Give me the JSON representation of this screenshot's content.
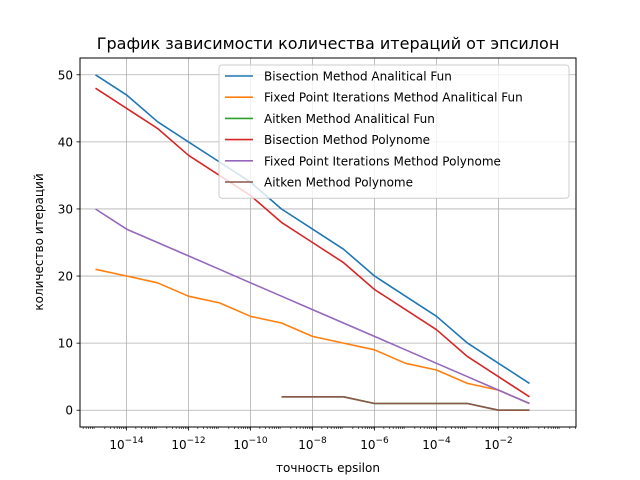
{
  "chart_data": {
    "type": "line",
    "title": "График зависимости количества итераций от эпсилон",
    "xlabel": "точность epsilon",
    "ylabel": "количество итераций",
    "xscale": "log",
    "xlim": [
      3.16e-16,
      3.16
    ],
    "ylim": [
      -2.5,
      52.5
    ],
    "grid": true,
    "legend_position": "top-right",
    "x_ticks": [
      {
        "base": "10",
        "exp": "−14",
        "value": 1e-14
      },
      {
        "base": "10",
        "exp": "−12",
        "value": 1e-12
      },
      {
        "base": "10",
        "exp": "−10",
        "value": 1e-10
      },
      {
        "base": "10",
        "exp": "−8",
        "value": 1e-08
      },
      {
        "base": "10",
        "exp": "−6",
        "value": 1e-06
      },
      {
        "base": "10",
        "exp": "−4",
        "value": 0.0001
      },
      {
        "base": "10",
        "exp": "−2",
        "value": 0.01
      }
    ],
    "y_ticks": [
      0,
      10,
      20,
      30,
      40,
      50
    ],
    "x": [
      1e-15,
      1e-14,
      1e-13,
      1e-12,
      1e-11,
      1e-10,
      1e-09,
      1e-08,
      1e-07,
      1e-06,
      1e-05,
      0.0001,
      0.001,
      0.01,
      0.1
    ],
    "series": [
      {
        "name": "Bisection Method Analitical Fun",
        "color": "#1f77b4",
        "values": [
          50,
          47,
          43,
          40,
          37,
          34,
          30,
          27,
          24,
          20,
          17,
          14,
          10,
          7,
          4
        ]
      },
      {
        "name": "Fixed Point Iterations Method Analitical Fun",
        "color": "#ff7f0e",
        "values": [
          21,
          20,
          19,
          17,
          16,
          14,
          13,
          11,
          10,
          9,
          7,
          6,
          4,
          3,
          1
        ]
      },
      {
        "name": "Aitken Method Analitical Fun",
        "color": "#2ca02c",
        "values": [
          null,
          null,
          null,
          null,
          null,
          null,
          2,
          2,
          2,
          1,
          1,
          1,
          1,
          0,
          0
        ]
      },
      {
        "name": "Bisection Method Polynome",
        "color": "#d62728",
        "values": [
          48,
          45,
          42,
          38,
          35,
          32,
          28,
          25,
          22,
          18,
          15,
          12,
          8,
          5,
          2
        ]
      },
      {
        "name": "Fixed Point Iterations Method Polynome",
        "color": "#9467bd",
        "values": [
          30,
          27,
          25,
          23,
          21,
          19,
          17,
          15,
          13,
          11,
          9,
          7,
          5,
          3,
          1
        ]
      },
      {
        "name": "Aitken Method Polynome",
        "color": "#8c564b",
        "values": [
          null,
          null,
          null,
          null,
          null,
          null,
          2,
          2,
          2,
          1,
          1,
          1,
          1,
          0,
          0
        ]
      }
    ]
  }
}
